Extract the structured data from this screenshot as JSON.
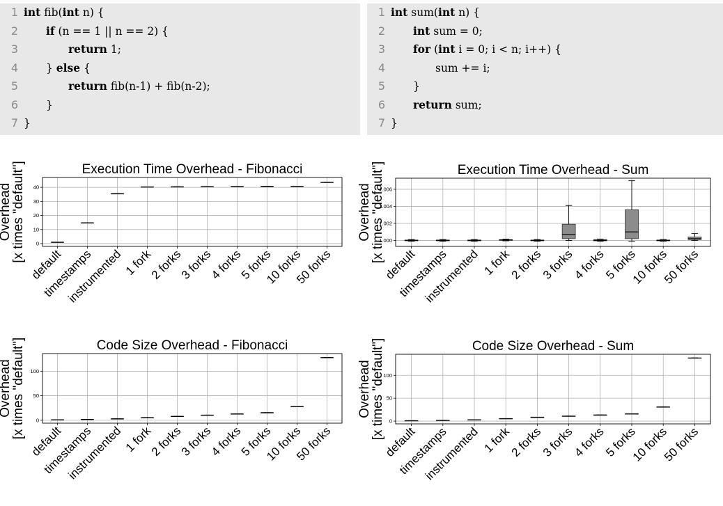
{
  "code": [
    {
      "id": "fib",
      "lines": [
        {
          "n": "1",
          "indent": 0,
          "tokens": [
            [
              "kw",
              "int"
            ],
            [
              "t",
              " fib("
            ],
            [
              "kw",
              "int"
            ],
            [
              "t",
              " n) {"
            ]
          ]
        },
        {
          "n": "2",
          "indent": 1,
          "tokens": [
            [
              "kw",
              "if"
            ],
            [
              "t",
              " (n == 1 || n == 2) {"
            ]
          ]
        },
        {
          "n": "3",
          "indent": 2,
          "tokens": [
            [
              "kw",
              "return"
            ],
            [
              "t",
              " 1;"
            ]
          ]
        },
        {
          "n": "4",
          "indent": 1,
          "tokens": [
            [
              "t",
              "} "
            ],
            [
              "kw",
              "else"
            ],
            [
              "t",
              " {"
            ]
          ]
        },
        {
          "n": "5",
          "indent": 2,
          "tokens": [
            [
              "kw",
              "return"
            ],
            [
              "t",
              " fib(n-1) + fib(n-2);"
            ]
          ]
        },
        {
          "n": "6",
          "indent": 1,
          "tokens": [
            [
              "t",
              "}"
            ]
          ]
        },
        {
          "n": "7",
          "indent": 0,
          "tokens": [
            [
              "t",
              "}"
            ]
          ]
        }
      ]
    },
    {
      "id": "sum",
      "lines": [
        {
          "n": "1",
          "indent": 0,
          "tokens": [
            [
              "kw",
              "int"
            ],
            [
              "t",
              " sum("
            ],
            [
              "kw",
              "int"
            ],
            [
              "t",
              " n) {"
            ]
          ]
        },
        {
          "n": "2",
          "indent": 1,
          "tokens": [
            [
              "kw",
              "int"
            ],
            [
              "t",
              " sum = 0;"
            ]
          ]
        },
        {
          "n": "3",
          "indent": 1,
          "tokens": [
            [
              "kw",
              "for"
            ],
            [
              "t",
              " ("
            ],
            [
              "kw",
              "int"
            ],
            [
              "t",
              " i = 0; i < n; i++) {"
            ]
          ]
        },
        {
          "n": "4",
          "indent": 2,
          "tokens": [
            [
              "t",
              "sum += i;"
            ]
          ]
        },
        {
          "n": "5",
          "indent": 1,
          "tokens": [
            [
              "t",
              "}"
            ]
          ]
        },
        {
          "n": "6",
          "indent": 1,
          "tokens": [
            [
              "kw",
              "return"
            ],
            [
              "t",
              " sum;"
            ]
          ]
        },
        {
          "n": "7",
          "indent": 0,
          "tokens": [
            [
              "t",
              "}"
            ]
          ]
        }
      ]
    }
  ],
  "chart_data": [
    {
      "id": "exec-fib",
      "type": "box",
      "title": "Execution Time Overhead - Fibonacci",
      "ylabel": [
        "Overhead",
        "[x times \"default\"]"
      ],
      "categories": [
        "default",
        "timestamps",
        "instrumented",
        "1 fork",
        "2 forks",
        "3 forks",
        "4 forks",
        "5 forks",
        "10 forks",
        "50 forks"
      ],
      "ylim": [
        -2,
        47
      ],
      "yticks": [
        0,
        10,
        20,
        30,
        40
      ],
      "grid": true,
      "boxes": [
        {
          "median": 1.0,
          "q1": 1.0,
          "q3": 1.0,
          "low": 1.0,
          "high": 1.0
        },
        {
          "median": 14.8,
          "q1": 14.8,
          "q3": 14.8,
          "low": 14.8,
          "high": 14.8
        },
        {
          "median": 35.5,
          "q1": 35.5,
          "q3": 35.5,
          "low": 35.5,
          "high": 35.5
        },
        {
          "median": 40.3,
          "q1": 40.3,
          "q3": 40.3,
          "low": 40.3,
          "high": 40.3
        },
        {
          "median": 40.4,
          "q1": 40.4,
          "q3": 40.4,
          "low": 40.4,
          "high": 40.4
        },
        {
          "median": 40.5,
          "q1": 40.5,
          "q3": 40.5,
          "low": 40.5,
          "high": 40.5
        },
        {
          "median": 40.6,
          "q1": 40.6,
          "q3": 40.6,
          "low": 40.6,
          "high": 40.6
        },
        {
          "median": 40.7,
          "q1": 40.7,
          "q3": 40.7,
          "low": 40.7,
          "high": 40.7
        },
        {
          "median": 40.8,
          "q1": 40.8,
          "q3": 40.8,
          "low": 40.8,
          "high": 40.8
        },
        {
          "median": 43.6,
          "q1": 43.6,
          "q3": 43.6,
          "low": 43.6,
          "high": 43.6
        }
      ]
    },
    {
      "id": "exec-sum",
      "type": "box",
      "title": "Execution Time Overhead - Sum",
      "ylabel": [
        "Overhead",
        "[x times \"default\"]"
      ],
      "categories": [
        "default",
        "timestamps",
        "instrumented",
        "1 fork",
        "2 forks",
        "3 forks",
        "4 forks",
        "5 forks",
        "10 forks",
        "50 forks"
      ],
      "ylim": [
        0.9993,
        1.0073
      ],
      "yticks": [
        1.0,
        1.002,
        1.004,
        1.006
      ],
      "ytick_labels": [
        "1.000",
        "1.002",
        "1.004",
        "1.006"
      ],
      "grid": true,
      "boxes": [
        {
          "median": 1.0,
          "q1": 0.99995,
          "q3": 1.00005,
          "low": 0.9999,
          "high": 1.0001
        },
        {
          "median": 1.0,
          "q1": 0.99995,
          "q3": 1.00005,
          "low": 0.9999,
          "high": 1.0001
        },
        {
          "median": 1.0,
          "q1": 0.99995,
          "q3": 1.00005,
          "low": 0.9999,
          "high": 1.0001
        },
        {
          "median": 1.00005,
          "q1": 1.0,
          "q3": 1.0001,
          "low": 0.99995,
          "high": 1.00015
        },
        {
          "median": 1.0,
          "q1": 0.99995,
          "q3": 1.00005,
          "low": 0.9999,
          "high": 1.0001
        },
        {
          "median": 1.0007,
          "q1": 1.0002,
          "q3": 1.0019,
          "low": 1.0,
          "high": 1.0041
        },
        {
          "median": 1.0,
          "q1": 0.99995,
          "q3": 1.0001,
          "low": 0.9999,
          "high": 1.00015
        },
        {
          "median": 1.001,
          "q1": 1.0002,
          "q3": 1.0036,
          "low": 0.9999,
          "high": 1.007
        },
        {
          "median": 1.0,
          "q1": 0.99995,
          "q3": 1.00005,
          "low": 0.9999,
          "high": 1.0001
        },
        {
          "median": 1.0002,
          "q1": 1.0001,
          "q3": 1.0004,
          "low": 1.0,
          "high": 1.0008
        }
      ]
    },
    {
      "id": "size-fib",
      "type": "box",
      "title": "Code Size Overhead - Fibonacci",
      "ylabel": [
        "Overhead",
        "[x times \"default\"]"
      ],
      "categories": [
        "default",
        "timestamps",
        "instrumented",
        "1 fork",
        "2 forks",
        "3 forks",
        "4 forks",
        "5 forks",
        "10 forks",
        "50 forks"
      ],
      "ylim": [
        -6,
        136
      ],
      "yticks": [
        0,
        50,
        100
      ],
      "grid": true,
      "boxes": [
        {
          "median": 1,
          "q1": 1,
          "q3": 1,
          "low": 1,
          "high": 1
        },
        {
          "median": 1.8,
          "q1": 1.8,
          "q3": 1.8,
          "low": 1.8,
          "high": 1.8
        },
        {
          "median": 3,
          "q1": 3,
          "q3": 3,
          "low": 3,
          "high": 3
        },
        {
          "median": 5.5,
          "q1": 5.5,
          "q3": 5.5,
          "low": 5.5,
          "high": 5.5
        },
        {
          "median": 8,
          "q1": 8,
          "q3": 8,
          "low": 8,
          "high": 8
        },
        {
          "median": 10.5,
          "q1": 10.5,
          "q3": 10.5,
          "low": 10.5,
          "high": 10.5
        },
        {
          "median": 13,
          "q1": 13,
          "q3": 13,
          "low": 13,
          "high": 13
        },
        {
          "median": 15.5,
          "q1": 15.5,
          "q3": 15.5,
          "low": 15.5,
          "high": 15.5
        },
        {
          "median": 28,
          "q1": 28,
          "q3": 28,
          "low": 28,
          "high": 28
        },
        {
          "median": 128,
          "q1": 128,
          "q3": 128,
          "low": 128,
          "high": 128
        }
      ]
    },
    {
      "id": "size-sum",
      "type": "box",
      "title": "Code Size Overhead - Sum",
      "ylabel": [
        "Overhead",
        "[x times \"default\"]"
      ],
      "categories": [
        "default",
        "timestamps",
        "instrumented",
        "1 fork",
        "2 forks",
        "3 forks",
        "4 forks",
        "5 forks",
        "10 forks",
        "50 forks"
      ],
      "ylim": [
        -6,
        146
      ],
      "yticks": [
        0,
        50,
        100
      ],
      "grid": true,
      "boxes": [
        {
          "median": 1,
          "q1": 1,
          "q3": 1,
          "low": 1,
          "high": 1
        },
        {
          "median": 1.8,
          "q1": 1.8,
          "q3": 1.8,
          "low": 1.8,
          "high": 1.8
        },
        {
          "median": 3,
          "q1": 3,
          "q3": 3,
          "low": 3,
          "high": 3
        },
        {
          "median": 5.5,
          "q1": 5.5,
          "q3": 5.5,
          "low": 5.5,
          "high": 5.5
        },
        {
          "median": 8.5,
          "q1": 8.5,
          "q3": 8.5,
          "low": 8.5,
          "high": 8.5
        },
        {
          "median": 11,
          "q1": 11,
          "q3": 11,
          "low": 11,
          "high": 11
        },
        {
          "median": 13.5,
          "q1": 13.5,
          "q3": 13.5,
          "low": 13.5,
          "high": 13.5
        },
        {
          "median": 16,
          "q1": 16,
          "q3": 16,
          "low": 16,
          "high": 16
        },
        {
          "median": 31,
          "q1": 31,
          "q3": 31,
          "low": 31,
          "high": 31
        },
        {
          "median": 138,
          "q1": 138,
          "q3": 138,
          "low": 138,
          "high": 138
        }
      ]
    }
  ]
}
